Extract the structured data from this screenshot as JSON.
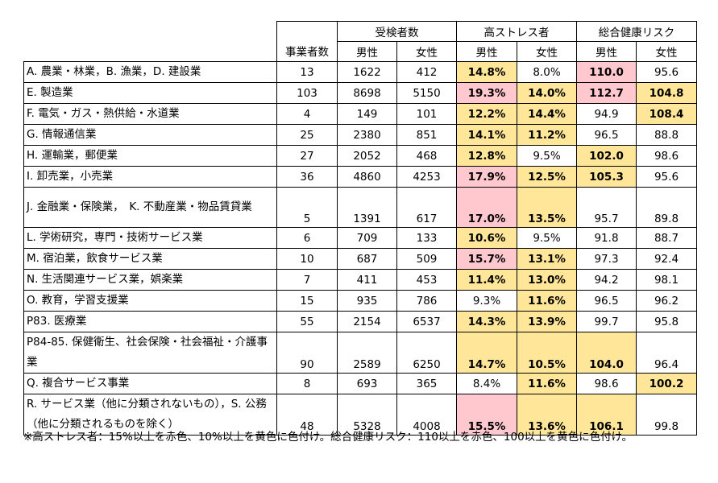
{
  "header": {
    "establishments": "事業者数",
    "examinees": "受検者数",
    "high_stress": "高ストレス者",
    "health_risk": "総合健康リスク",
    "male": "男性",
    "female": "女性"
  },
  "rows": [
    {
      "industry": "A. 農業・林業，B. 漁業，D. 建設業",
      "n": "13",
      "m": "1622",
      "f": "412",
      "hs_m": "14.8%",
      "hs_f": "8.0%",
      "hr_m": "110.0",
      "hr_f": "95.6"
    },
    {
      "industry": "E. 製造業",
      "n": "103",
      "m": "8698",
      "f": "5150",
      "hs_m": "19.3%",
      "hs_f": "14.0%",
      "hr_m": "112.7",
      "hr_f": "104.8"
    },
    {
      "industry": "F. 電気・ガス・熱供給・水道業",
      "n": "4",
      "m": "149",
      "f": "101",
      "hs_m": "12.2%",
      "hs_f": "14.4%",
      "hr_m": "94.9",
      "hr_f": "108.4"
    },
    {
      "industry": "G. 情報通信業",
      "n": "25",
      "m": "2380",
      "f": "851",
      "hs_m": "14.1%",
      "hs_f": "11.2%",
      "hr_m": "96.5",
      "hr_f": "88.8"
    },
    {
      "industry": "H. 運輸業，郵便業",
      "n": "27",
      "m": "2052",
      "f": "468",
      "hs_m": "12.8%",
      "hs_f": "9.5%",
      "hr_m": "102.0",
      "hr_f": "98.6"
    },
    {
      "industry": "I. 卸売業，小売業",
      "n": "36",
      "m": "4860",
      "f": "4253",
      "hs_m": "17.9%",
      "hs_f": "12.5%",
      "hr_m": "105.3",
      "hr_f": "95.6"
    },
    {
      "industry": "J. 金融業・保険業，　K. 不動産業・物品賃貸業",
      "n": "5",
      "m": "1391",
      "f": "617",
      "hs_m": "17.0%",
      "hs_f": "13.5%",
      "hr_m": "95.7",
      "hr_f": "89.8"
    },
    {
      "industry": "L. 学術研究，専門・技術サービス業",
      "n": "6",
      "m": "709",
      "f": "133",
      "hs_m": "10.6%",
      "hs_f": "9.5%",
      "hr_m": "91.8",
      "hr_f": "88.7"
    },
    {
      "industry": "M. 宿泊業，飲食サービス業",
      "n": "10",
      "m": "687",
      "f": "509",
      "hs_m": "15.7%",
      "hs_f": "13.1%",
      "hr_m": "97.3",
      "hr_f": "92.4"
    },
    {
      "industry": "N. 生活関連サービス業，娯楽業",
      "n": "7",
      "m": "411",
      "f": "453",
      "hs_m": "11.4%",
      "hs_f": "13.0%",
      "hr_m": "94.2",
      "hr_f": "98.1"
    },
    {
      "industry": "O. 教育，学習支援業",
      "n": "15",
      "m": "935",
      "f": "786",
      "hs_m": "9.3%",
      "hs_f": "11.6%",
      "hr_m": "96.5",
      "hr_f": "96.2"
    },
    {
      "industry": "P83. 医療業",
      "n": "55",
      "m": "2154",
      "f": "6537",
      "hs_m": "14.3%",
      "hs_f": "13.9%",
      "hr_m": "99.7",
      "hr_f": "95.8"
    },
    {
      "industry": "P84-85. 保健衛生、社会保険・社会福祉・介護事業",
      "n": "90",
      "m": "2589",
      "f": "6250",
      "hs_m": "14.7%",
      "hs_f": "10.5%",
      "hr_m": "104.0",
      "hr_f": "96.4"
    },
    {
      "industry": "Q. 複合サービス事業",
      "n": "8",
      "m": "693",
      "f": "365",
      "hs_m": "8.4%",
      "hs_f": "11.6%",
      "hr_m": "98.6",
      "hr_f": "100.2"
    },
    {
      "industry": "R. サービス業（他に分類されないもの），S. 公務（他に分類されるものを除く）",
      "n": "48",
      "m": "5328",
      "f": "4008",
      "hs_m": "15.5%",
      "hs_f": "13.6%",
      "hr_m": "106.1",
      "hr_f": "99.8"
    }
  ],
  "highlight": {
    "red_color": "#ffc7ce",
    "yellow_color": "#ffe699"
  },
  "note": "※高ストレス者：15%以上を赤色、10%以上を黄色に色付け。総合健康リスク：110以上を赤色、100以上を黄色に色付け。"
}
